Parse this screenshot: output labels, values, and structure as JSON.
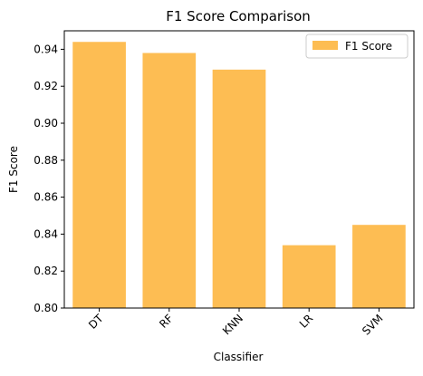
{
  "chart_data": {
    "type": "bar",
    "title": "F1 Score Comparison",
    "xlabel": "Classifier",
    "ylabel": "F1 Score",
    "categories": [
      "DT",
      "RF",
      "KNN",
      "LR",
      "SVM"
    ],
    "series": [
      {
        "name": "F1 Score",
        "values": [
          0.944,
          0.938,
          0.929,
          0.834,
          0.845
        ]
      }
    ],
    "ylim": [
      0.8,
      0.95
    ],
    "yticks": [
      "0.80",
      "0.82",
      "0.84",
      "0.86",
      "0.88",
      "0.90",
      "0.92",
      "0.94"
    ],
    "legend_position": "top-right",
    "grid": false,
    "bar_color": "#fdb94a",
    "legend_label": "F1 Score"
  }
}
